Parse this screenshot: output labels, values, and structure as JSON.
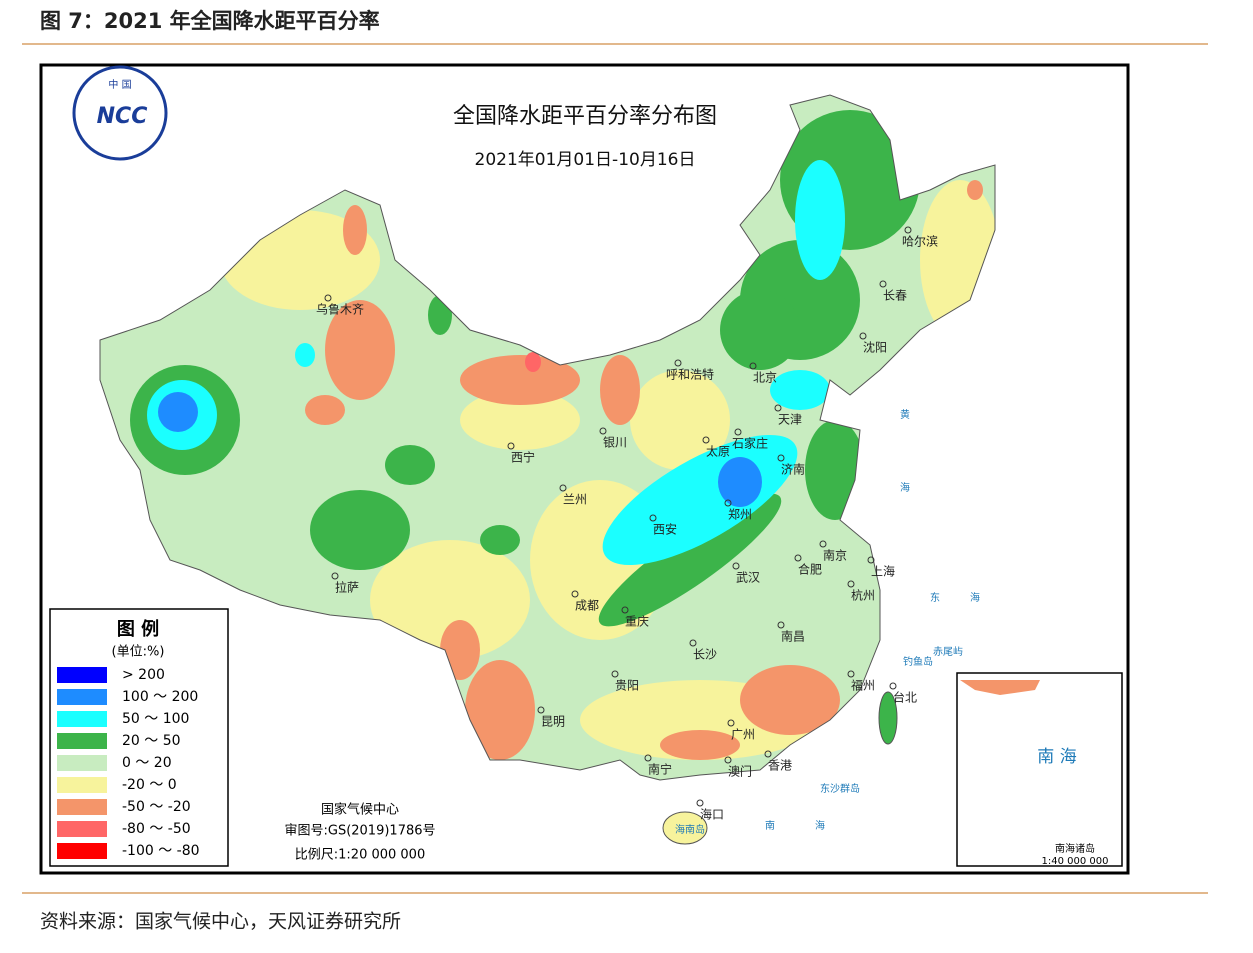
{
  "header": {
    "title": "图 7：2021 年全国降水距平百分率"
  },
  "map": {
    "title": "全国降水距平百分率分布图",
    "subtitle": "2021年01月01日-10月16日",
    "logo": {
      "top": "中 国",
      "text": "NCC"
    },
    "legend": {
      "title": "图 例",
      "unit": "(单位:%)",
      "items": [
        {
          "label": "> 200",
          "color": "#0000ff"
        },
        {
          "label": "100 ～ 200",
          "color": "#1e8cff"
        },
        {
          "label": "50 ～ 100",
          "color": "#1bffff"
        },
        {
          "label": "20 ～ 50",
          "color": "#3cb44a"
        },
        {
          "label": "0 ～ 20",
          "color": "#c8ecc0"
        },
        {
          "label": "-20 ～ 0",
          "color": "#f7f39c"
        },
        {
          "label": "-50 ～ -20",
          "color": "#f4956a"
        },
        {
          "label": "-80 ～ -50",
          "color": "#ff6666"
        },
        {
          "label": "-100 ～ -80",
          "color": "#ff0000"
        }
      ]
    },
    "cities": [
      "乌鲁木齐",
      "哈尔滨",
      "长春",
      "沈阳",
      "呼和浩特",
      "北京",
      "天津",
      "石家庄",
      "太原",
      "济南",
      "西宁",
      "银川",
      "兰州",
      "郑州",
      "西安",
      "南京",
      "合肥",
      "上海",
      "武汉",
      "杭州",
      "拉萨",
      "成都",
      "重庆",
      "长沙",
      "南昌",
      "贵阳",
      "福州",
      "台北",
      "昆明",
      "广州",
      "南宁",
      "澳门",
      "香港",
      "海口"
    ],
    "places": [
      "海南岛",
      "东沙群岛",
      "赤尾屿",
      "钓鱼岛",
      "黄",
      "海",
      "东",
      "海",
      "南",
      "海"
    ],
    "credits": [
      "国家气候中心",
      "审图号:GS(2019)1786号",
      "比例尺:1:20 000 000"
    ],
    "inset": {
      "sea": "南 海",
      "title": "南海诸岛",
      "scale": "1:40 000 000"
    }
  },
  "footer": {
    "source": "资料来源：国家气候中心，天风证券研究所"
  }
}
